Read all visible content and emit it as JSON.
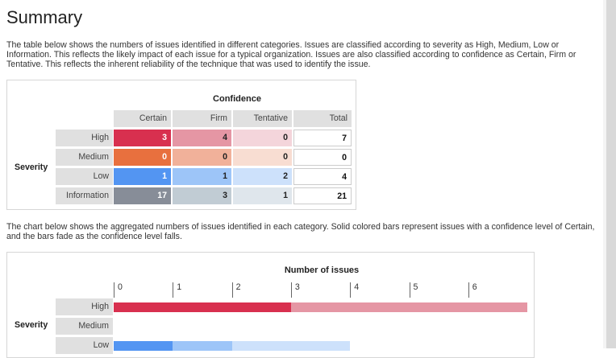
{
  "page": {
    "title": "Summary",
    "intro": "The table below shows the numbers of issues identified in different categories. Issues are classified according to severity as High, Medium, Low or Information. This reflects the likely impact of each issue for a typical organization. Issues are also classified according to confidence as Certain, Firm or Tentative. This reflects the inherent reliability of the technique that was used to identify the issue.",
    "chart_intro": "The chart below shows the aggregated numbers of issues identified in each category. Solid colored bars represent issues with a confidence level of Certain, and the bars fade as the confidence level falls."
  },
  "table": {
    "confidence_header": "Confidence",
    "severity_label": "Severity",
    "columns": [
      "Certain",
      "Firm",
      "Tentative",
      "Total"
    ],
    "rows": [
      {
        "label": "High",
        "values": [
          3,
          4,
          0
        ],
        "total": 7
      },
      {
        "label": "Medium",
        "values": [
          0,
          0,
          0
        ],
        "total": 0
      },
      {
        "label": "Low",
        "values": [
          1,
          1,
          2
        ],
        "total": 4
      },
      {
        "label": "Information",
        "values": [
          17,
          3,
          1
        ],
        "total": 21
      }
    ],
    "colors": {
      "High": [
        "#d8304f",
        "#e596a4",
        "#f4d5db"
      ],
      "Medium": [
        "#e8703e",
        "#f1b19a",
        "#f8ddd2"
      ],
      "Low": [
        "#5395f2",
        "#9dc5f8",
        "#cde1fb"
      ],
      "Information": [
        "#878d98",
        "#c1ccd4",
        "#dfe6ec"
      ]
    }
  },
  "chart_data": {
    "type": "bar",
    "title": "Number of issues",
    "ylabel": "Severity",
    "orientation": "horizontal",
    "stacked": true,
    "categories": [
      "High",
      "Medium",
      "Low"
    ],
    "ticks": [
      0,
      1,
      2,
      3,
      4,
      5,
      6
    ],
    "series": [
      {
        "name": "Certain",
        "values": [
          3,
          0,
          1
        ]
      },
      {
        "name": "Firm",
        "values": [
          4,
          0,
          1
        ]
      },
      {
        "name": "Tentative",
        "values": [
          0,
          0,
          2
        ]
      }
    ],
    "colors": {
      "High": [
        "#d8304f",
        "#e596a4",
        "#f4d5db"
      ],
      "Medium": [
        "#e8703e",
        "#f1b19a",
        "#f8ddd2"
      ],
      "Low": [
        "#5395f2",
        "#9dc5f8",
        "#cde1fb"
      ]
    }
  }
}
